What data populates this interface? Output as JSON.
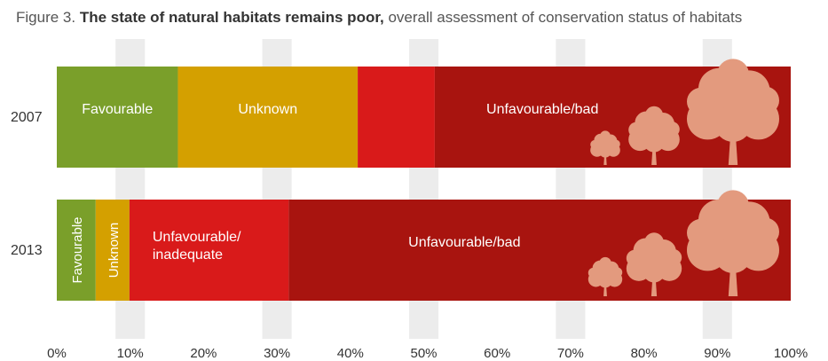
{
  "title": {
    "prefix": "Figure 3.",
    "bold": "The state of natural habitats remains poor,",
    "rest": "overall assessment of conservation status of habitats"
  },
  "colors": {
    "favourable": "#7a9f2a",
    "unknown": "#d4a000",
    "inadequate": "#d91a1a",
    "bad": "#a8140f",
    "tree": "#e39a7e",
    "grid_band": "#ececec"
  },
  "chart_data": {
    "type": "bar",
    "orientation": "horizontal",
    "stacked": true,
    "categories": [
      "2007",
      "2013"
    ],
    "xlim": [
      0,
      100
    ],
    "x_ticks": [
      "0%",
      "10%",
      "20%",
      "30%",
      "40%",
      "50%",
      "60%",
      "70%",
      "80%",
      "90%",
      "100%"
    ],
    "grid": true,
    "legend": "none",
    "bars": [
      {
        "category": "2007",
        "segments": [
          {
            "label": "Favourable",
            "value": 16.5,
            "color_key": "favourable",
            "vertical": false
          },
          {
            "label": "Unknown",
            "value": 24.5,
            "color_key": "unknown",
            "vertical": false
          },
          {
            "label": "",
            "value": 10.5,
            "color_key": "inadequate",
            "vertical": false
          },
          {
            "label": "Unfavourable/bad",
            "value": 48.5,
            "color_key": "bad",
            "vertical": false
          }
        ]
      },
      {
        "category": "2013",
        "segments": [
          {
            "label": "Favourable",
            "value": 5.3,
            "color_key": "favourable",
            "vertical": true
          },
          {
            "label": "Unknown",
            "value": 4.6,
            "color_key": "unknown",
            "vertical": true
          },
          {
            "label": "Unfavourable/\ninadequate",
            "value": 21.7,
            "color_key": "inadequate",
            "vertical": false
          },
          {
            "label": "Unfavourable/bad",
            "value": 68.4,
            "color_key": "bad",
            "vertical": false
          }
        ]
      }
    ]
  }
}
